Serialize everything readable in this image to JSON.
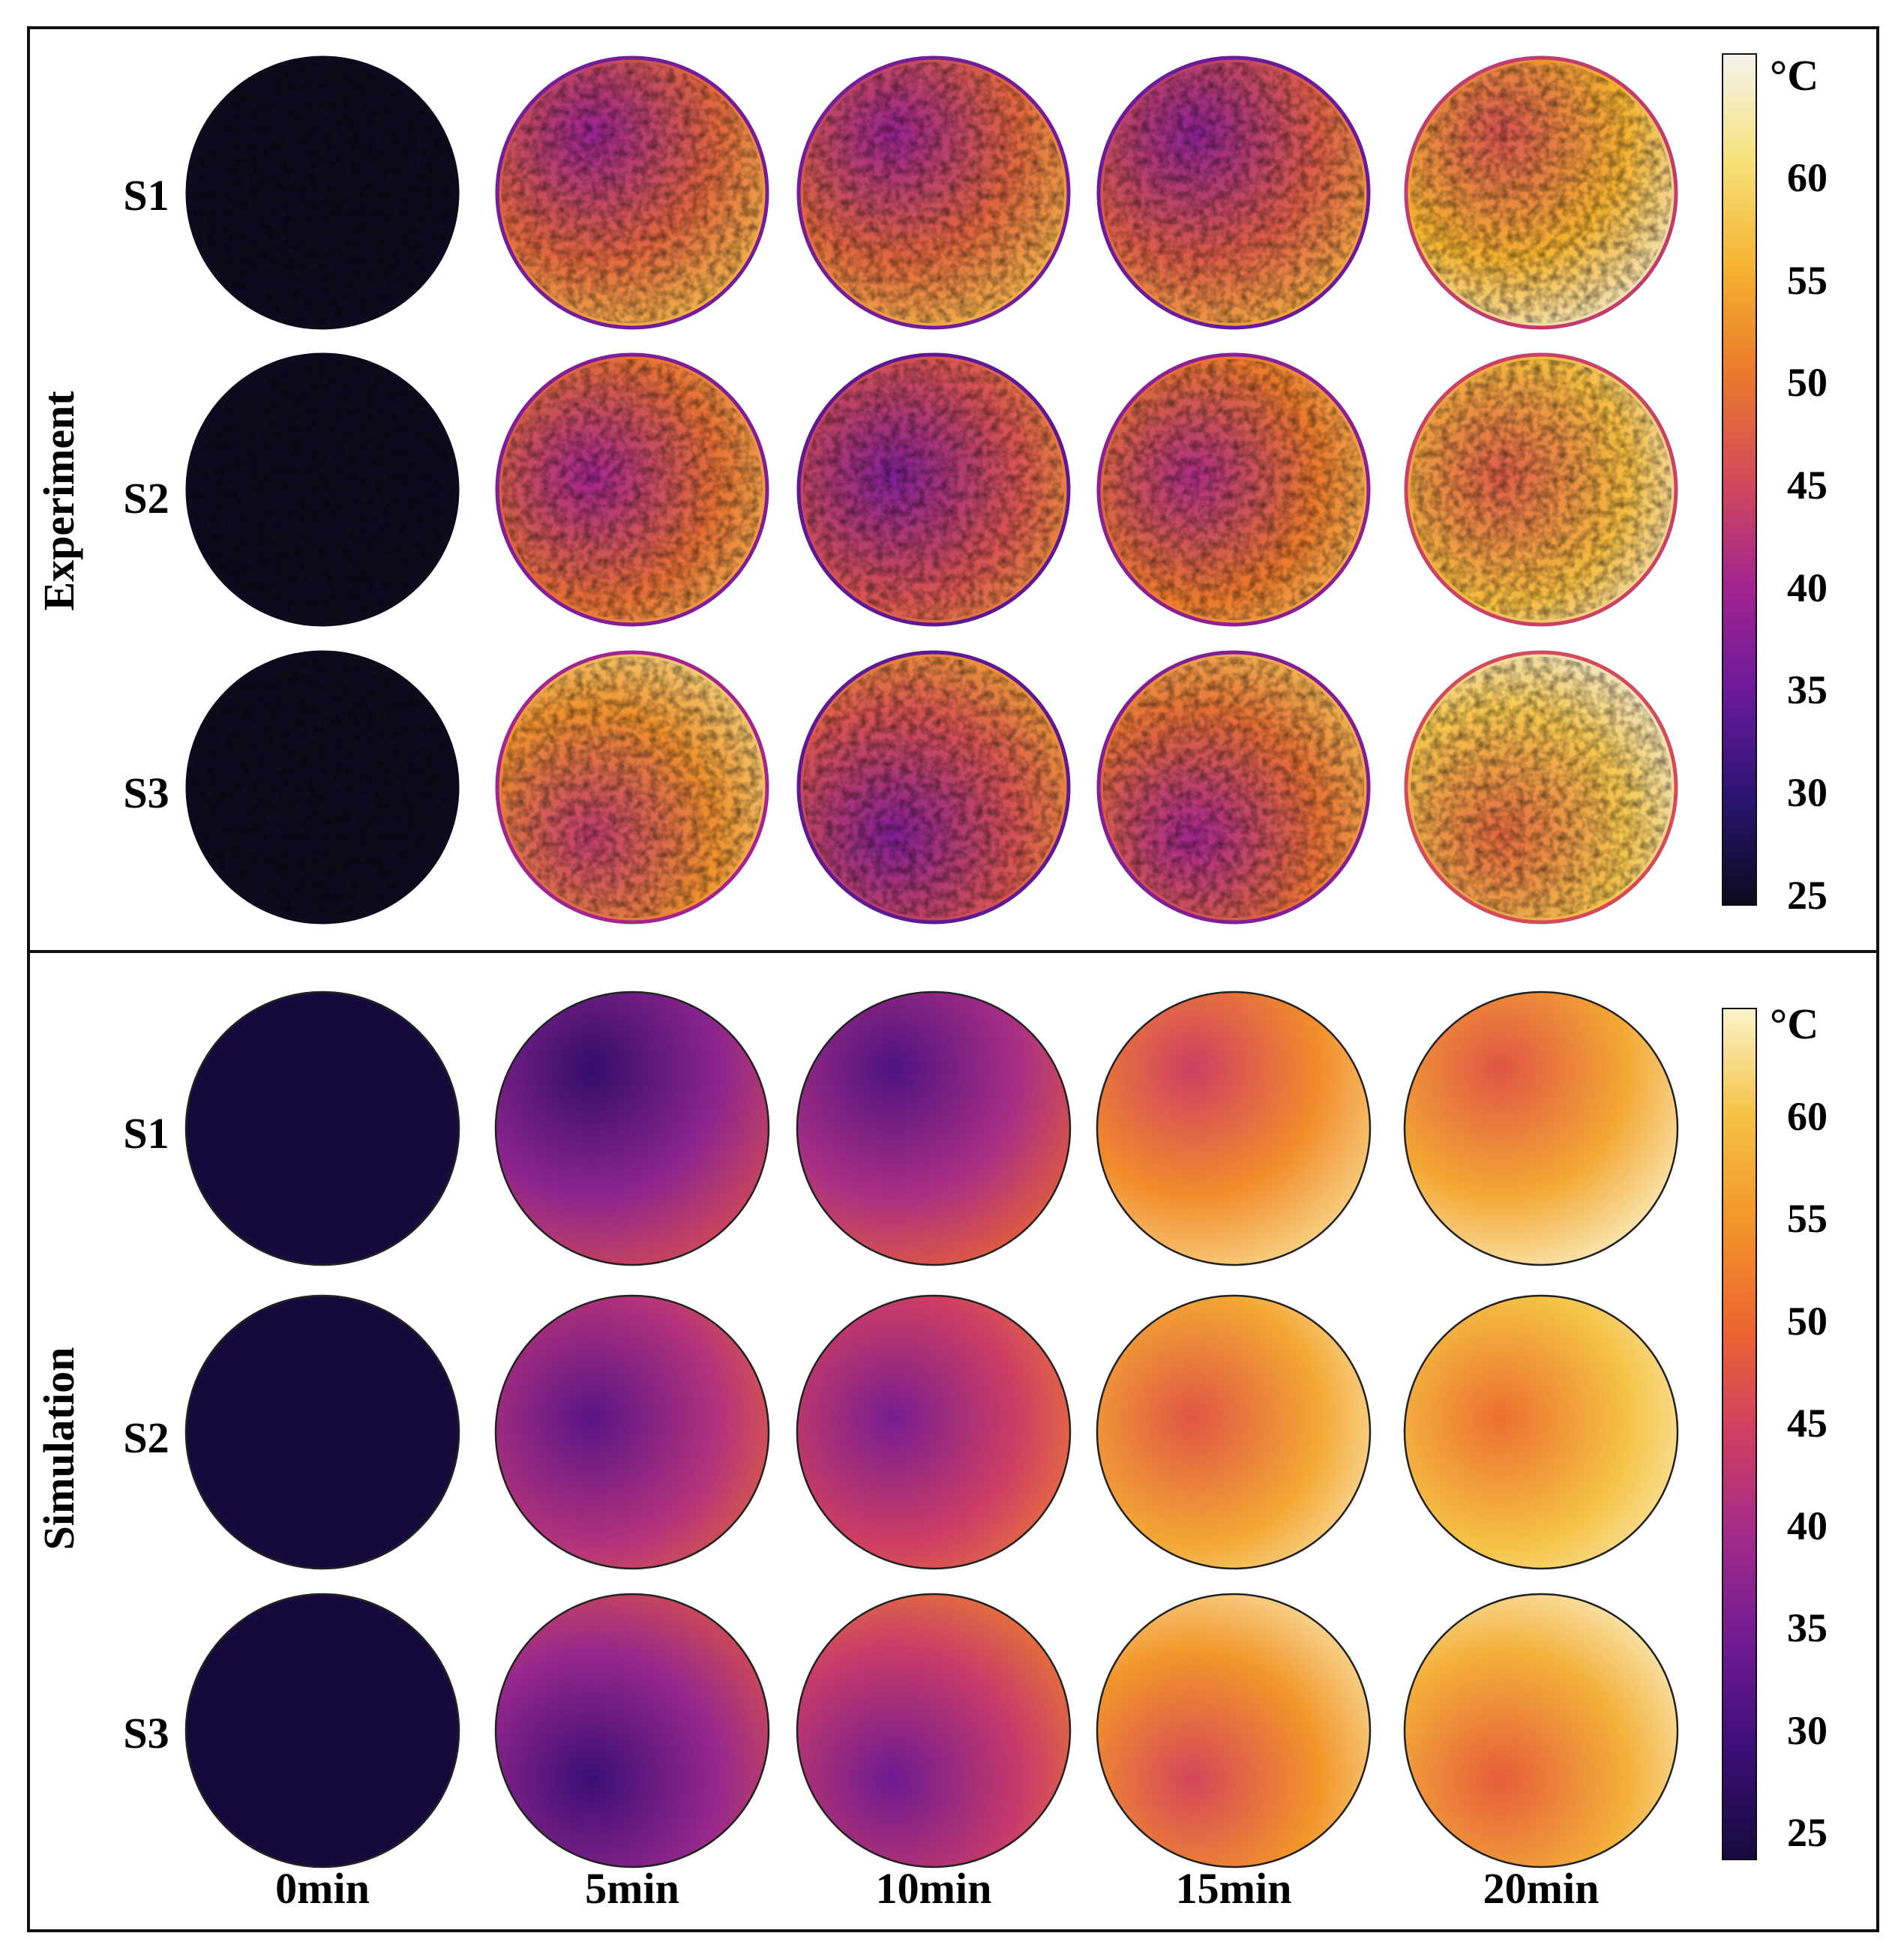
{
  "panels": [
    {
      "id": "experiment",
      "label": "Experiment",
      "unit": "°C",
      "colorbar_ticks": [
        "60",
        "55",
        "50",
        "45",
        "40",
        "35",
        "30",
        "25"
      ],
      "rows": [
        {
          "label": "S1",
          "temps": [
            25,
            48,
            48,
            47,
            55
          ]
        },
        {
          "label": "S2",
          "temps": [
            25,
            49,
            46,
            50,
            56
          ]
        },
        {
          "label": "S3",
          "temps": [
            25,
            52,
            46,
            49,
            57
          ]
        }
      ]
    },
    {
      "id": "simulation",
      "label": "Simulation",
      "unit": "°C",
      "colorbar_ticks": [
        "60",
        "55",
        "50",
        "45",
        "40",
        "35",
        "30",
        "25"
      ],
      "rows": [
        {
          "label": "S1",
          "temps": [
            25,
            38,
            41,
            54,
            57
          ]
        },
        {
          "label": "S2",
          "temps": [
            25,
            42,
            45,
            57,
            60
          ]
        },
        {
          "label": "S3",
          "temps": [
            25,
            39,
            44,
            55,
            58
          ]
        }
      ]
    }
  ],
  "time_labels": [
    "0min",
    "5min",
    "10min",
    "15min",
    "20min"
  ],
  "colorscale": {
    "experiment": [
      "#0b0b1c",
      "#2a1470",
      "#6a1a9a",
      "#a3248f",
      "#d34a5a",
      "#eb7a2c",
      "#f5b330",
      "#f6e27a",
      "#f4f3ee"
    ],
    "simulation": [
      "#160a3d",
      "#3a0e75",
      "#6d1a91",
      "#a02a8c",
      "#cf3e63",
      "#ec6530",
      "#f3962a",
      "#f5c244",
      "#fbf4cc"
    ]
  }
}
